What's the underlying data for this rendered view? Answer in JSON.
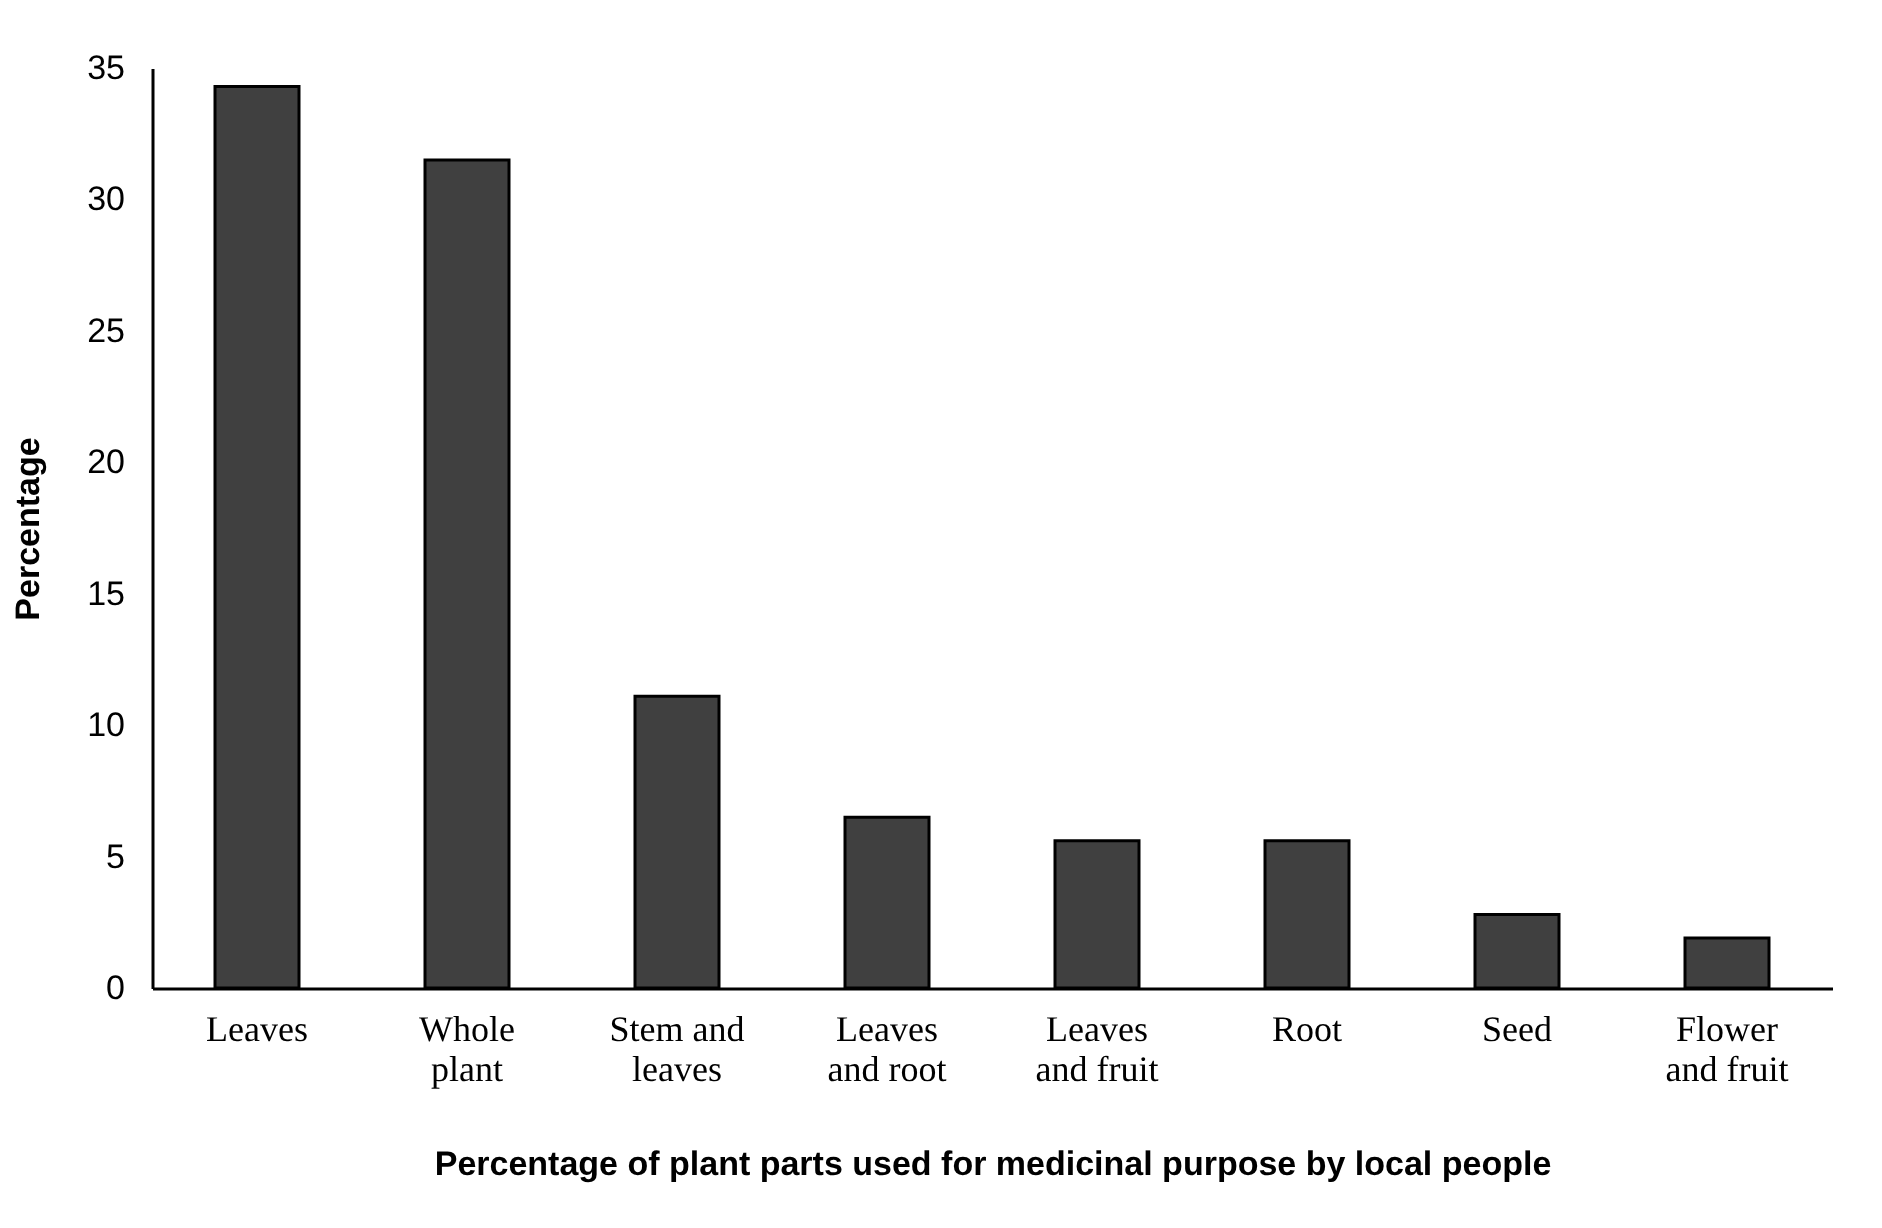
{
  "chart_data": {
    "type": "bar",
    "xlabel": "Percentage of plant parts used for medicinal purpose by local people",
    "ylabel": "Percentage",
    "categories": [
      "Leaves",
      "Whole plant",
      "Stem and leaves",
      "Leaves and root",
      "Leaves and fruit",
      "Root",
      "Seed",
      "Flower and fruit"
    ],
    "values": [
      34.3,
      31.5,
      11.1,
      6.5,
      5.6,
      5.6,
      2.8,
      1.9
    ],
    "color": "#404040",
    "ylim": [
      0,
      35
    ],
    "yticks": [
      0,
      5,
      10,
      15,
      20,
      25,
      30,
      35
    ],
    "grid": false
  }
}
